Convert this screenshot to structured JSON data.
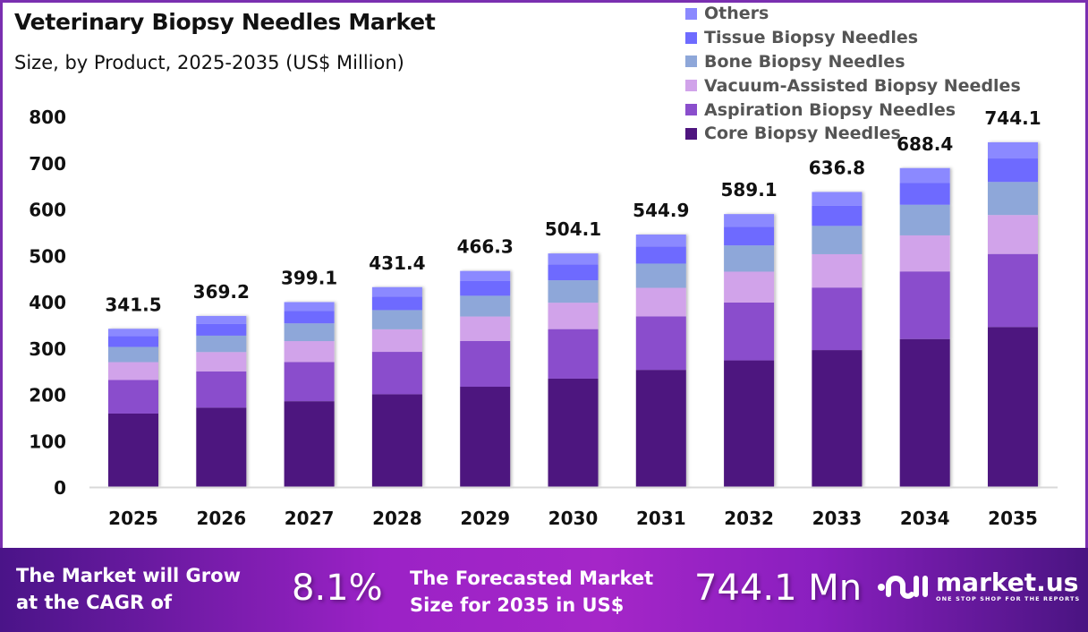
{
  "header": {
    "title": "Veterinary Biopsy Needles Market",
    "subtitle": "Size, by Product, 2025-2035 (US$ Million)"
  },
  "chart_data": {
    "type": "bar",
    "stacked": true,
    "title": "Veterinary Biopsy Needles Market",
    "subtitle": "Size, by Product, 2025-2035 (US$ Million)",
    "xlabel": "",
    "ylabel": "",
    "ylim": [
      0,
      800
    ],
    "yticks": [
      "0",
      "100",
      "200",
      "300",
      "400",
      "500",
      "600",
      "700",
      "800"
    ],
    "grid": false,
    "legend_position": "top-right",
    "categories": [
      "2025",
      "2026",
      "2027",
      "2028",
      "2029",
      "2030",
      "2031",
      "2032",
      "2033",
      "2034",
      "2035"
    ],
    "totals": [
      341.5,
      369.2,
      399.1,
      431.4,
      466.3,
      504.1,
      544.9,
      589.1,
      636.8,
      688.4,
      744.1
    ],
    "total_labels": [
      "341.5",
      "369.2",
      "399.1",
      "431.4",
      "466.3",
      "504.1",
      "544.9",
      "589.1",
      "636.8",
      "688.4",
      "744.1"
    ],
    "series": [
      {
        "name": "Core Biopsy Needles",
        "color": "#4e157f",
        "values": [
          158.5,
          171.3,
          185.2,
          200.2,
          216.4,
          233.9,
          252.8,
          273.3,
          295.5,
          319.4,
          345.3
        ]
      },
      {
        "name": "Aspiration Biopsy Needles",
        "color": "#8a4ecc",
        "values": [
          72.4,
          78.3,
          84.6,
          91.5,
          98.9,
          106.9,
          115.5,
          124.9,
          135.0,
          145.9,
          157.7
        ]
      },
      {
        "name": "Vacuum-Assisted Biopsy Needles",
        "color": "#d1a3ea",
        "values": [
          38.6,
          41.7,
          45.1,
          48.7,
          52.7,
          57.0,
          61.6,
          66.6,
          72.0,
          77.8,
          84.1
        ]
      },
      {
        "name": "Bone Biopsy Needles",
        "color": "#8ea7d9",
        "values": [
          32.8,
          35.4,
          38.3,
          41.4,
          44.8,
          48.4,
          52.3,
          56.6,
          61.1,
          66.1,
          71.4
        ]
      },
      {
        "name": "Tissue Biopsy Needles",
        "color": "#6e6bff",
        "values": [
          23.2,
          25.1,
          27.1,
          29.3,
          31.7,
          34.3,
          37.1,
          40.1,
          43.3,
          46.8,
          50.6
        ]
      },
      {
        "name": "Others",
        "color": "#8b89ff",
        "values": [
          16.0,
          17.4,
          18.8,
          20.3,
          21.8,
          23.6,
          25.6,
          27.6,
          29.9,
          32.4,
          35.0
        ]
      }
    ]
  },
  "legend": {
    "items": [
      {
        "label": "Others",
        "color": "#8b89ff"
      },
      {
        "label": "Tissue Biopsy Needles",
        "color": "#6e6bff"
      },
      {
        "label": "Bone Biopsy Needles",
        "color": "#8ea7d9"
      },
      {
        "label": "Vacuum-Assisted Biopsy Needles",
        "color": "#d1a3ea"
      },
      {
        "label": "Aspiration Biopsy Needles",
        "color": "#8a4ecc"
      },
      {
        "label": "Core Biopsy Needles",
        "color": "#4e157f"
      }
    ]
  },
  "banner": {
    "cagr_text_line1": "The Market will Grow",
    "cagr_text_line2": "at the CAGR of",
    "cagr_value": "8.1%",
    "forecast_text_line1": "The Forecasted Market",
    "forecast_text_line2": "Size for 2035 in US$",
    "forecast_value": "744.1 Mn",
    "logo_name": "market.us",
    "logo_tagline": "ONE STOP SHOP FOR THE REPORTS",
    "logo_icon": "market-us-logo-icon"
  }
}
